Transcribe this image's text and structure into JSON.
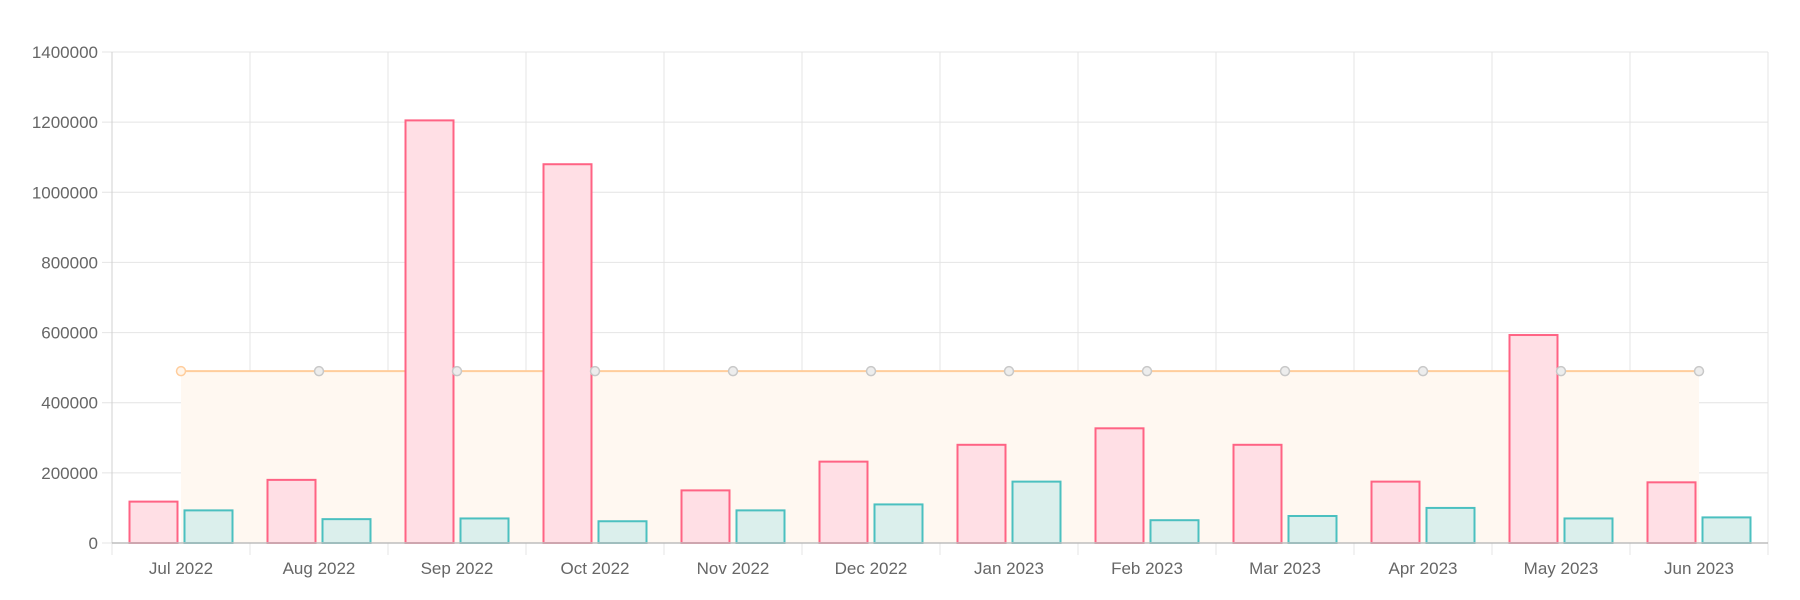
{
  "chart_data": {
    "type": "bar",
    "categories": [
      "Jul 2022",
      "Aug 2022",
      "Sep 2022",
      "Oct 2022",
      "Nov 2022",
      "Dec 2022",
      "Jan 2023",
      "Feb 2023",
      "Mar 2023",
      "Apr 2023",
      "May 2023",
      "Jun 2023"
    ],
    "yticks": [
      "0",
      "200000",
      "400000",
      "600000",
      "800000",
      "1000000",
      "1200000",
      "1400000"
    ],
    "ylim": [
      0,
      1400000
    ],
    "grid": true,
    "series": [
      {
        "type": "bar",
        "values": [
          118000,
          180000,
          1205000,
          1080000,
          150000,
          232000,
          280000,
          327000,
          280000,
          175000,
          593000,
          173000
        ],
        "color": "#ff6384",
        "fill": "#ffdfe5"
      },
      {
        "type": "bar",
        "values": [
          93000,
          68000,
          70000,
          62000,
          93000,
          110000,
          175000,
          65000,
          77000,
          100000,
          70000,
          73000
        ],
        "color": "#4bc0c0",
        "fill": "#dbefec"
      },
      {
        "type": "area",
        "values": [
          490000,
          490000,
          490000,
          490000,
          490000,
          490000,
          490000,
          490000,
          490000,
          490000,
          490000,
          490000
        ],
        "color": "#ffcd9c",
        "fill": "#fff8f1",
        "point_color": "#c8c8c8"
      }
    ]
  }
}
